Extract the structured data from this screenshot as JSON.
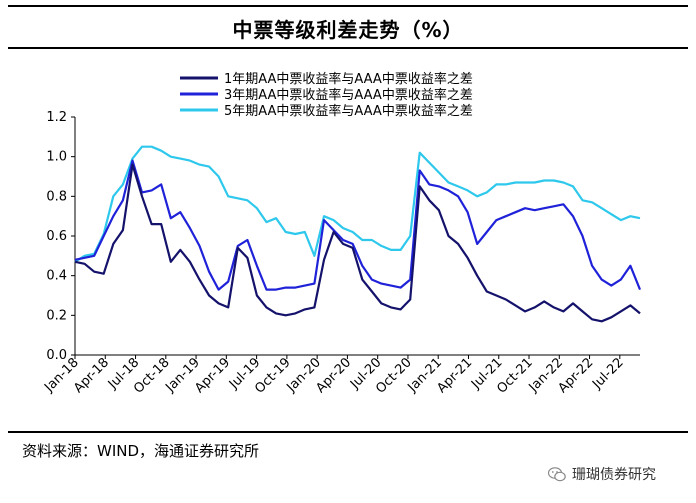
{
  "title": "中票等级利差走势（%）",
  "source": "资料来源：WIND，海通证券研究所",
  "watermark": "珊瑚债券研究",
  "colors": {
    "series1": "#14126b",
    "series2": "#1f22d8",
    "series3": "#2ec8ec"
  },
  "chart_data": {
    "type": "line",
    "title": "中票等级利差走势（%）",
    "xlabel": "",
    "ylabel": "",
    "ylim": [
      0,
      1.2
    ],
    "yticks": [
      "0.0",
      "0.2",
      "0.4",
      "0.6",
      "0.8",
      "1.0",
      "1.2"
    ],
    "xticks": [
      "Jan-18",
      "Apr-18",
      "Jul-18",
      "Oct-18",
      "Jan-19",
      "Apr-19",
      "Jul-19",
      "Oct-19",
      "Jan-20",
      "Apr-20",
      "Jul-20",
      "Oct-20",
      "Jan-21",
      "Apr-21",
      "Jul-21",
      "Oct-21",
      "Jan-22",
      "Apr-22",
      "Jul-22"
    ],
    "x_months": [
      0,
      1,
      2,
      3,
      4,
      5,
      6,
      7,
      8,
      9,
      10,
      11,
      12,
      13,
      14,
      15,
      16,
      17,
      18,
      19,
      20,
      21,
      22,
      23,
      24,
      25,
      26,
      27,
      28,
      29,
      30,
      31,
      32,
      33,
      34,
      35,
      36,
      37,
      38,
      39,
      40,
      41,
      42,
      43,
      44,
      45,
      46,
      47,
      48,
      49,
      50,
      51,
      52,
      53,
      54,
      55,
      56,
      57,
      58,
      59
    ],
    "legend_position": "top-center",
    "series": [
      {
        "name": "1年期AA中票收益率与AAA中票收益率之差",
        "values": [
          0.47,
          0.46,
          0.42,
          0.41,
          0.56,
          0.63,
          0.96,
          0.8,
          0.66,
          0.66,
          0.47,
          0.53,
          0.47,
          0.38,
          0.3,
          0.26,
          0.24,
          0.54,
          0.49,
          0.3,
          0.24,
          0.21,
          0.2,
          0.21,
          0.23,
          0.24,
          0.48,
          0.62,
          0.56,
          0.54,
          0.38,
          0.32,
          0.26,
          0.24,
          0.23,
          0.28,
          0.85,
          0.78,
          0.73,
          0.6,
          0.56,
          0.49,
          0.4,
          0.32,
          0.3,
          0.28,
          0.25,
          0.22,
          0.24,
          0.27,
          0.24,
          0.22,
          0.26,
          0.22,
          0.18,
          0.17,
          0.19,
          0.22,
          0.25,
          0.21
        ]
      },
      {
        "name": "3年期AA中票收益率与AAA中票收益率之差",
        "values": [
          0.48,
          0.49,
          0.5,
          0.6,
          0.7,
          0.78,
          0.98,
          0.82,
          0.83,
          0.86,
          0.69,
          0.72,
          0.64,
          0.55,
          0.42,
          0.33,
          0.37,
          0.55,
          0.58,
          0.45,
          0.33,
          0.33,
          0.34,
          0.34,
          0.35,
          0.36,
          0.68,
          0.63,
          0.58,
          0.56,
          0.45,
          0.38,
          0.36,
          0.35,
          0.34,
          0.38,
          0.93,
          0.86,
          0.85,
          0.83,
          0.8,
          0.72,
          0.56,
          0.62,
          0.68,
          0.7,
          0.72,
          0.74,
          0.73,
          0.74,
          0.75,
          0.76,
          0.7,
          0.6,
          0.45,
          0.38,
          0.35,
          0.38,
          0.45,
          0.33
        ]
      },
      {
        "name": "5年期AA中票收益率与AAA中票收益率之差",
        "values": [
          0.47,
          0.5,
          0.51,
          0.61,
          0.8,
          0.86,
          0.99,
          1.05,
          1.05,
          1.03,
          1.0,
          0.99,
          0.98,
          0.96,
          0.95,
          0.9,
          0.8,
          0.79,
          0.78,
          0.74,
          0.67,
          0.69,
          0.62,
          0.61,
          0.62,
          0.5,
          0.7,
          0.68,
          0.64,
          0.62,
          0.58,
          0.58,
          0.55,
          0.53,
          0.53,
          0.6,
          1.02,
          0.97,
          0.92,
          0.87,
          0.85,
          0.83,
          0.8,
          0.82,
          0.86,
          0.86,
          0.87,
          0.87,
          0.87,
          0.88,
          0.88,
          0.87,
          0.85,
          0.78,
          0.77,
          0.74,
          0.71,
          0.68,
          0.7,
          0.69
        ]
      }
    ]
  }
}
